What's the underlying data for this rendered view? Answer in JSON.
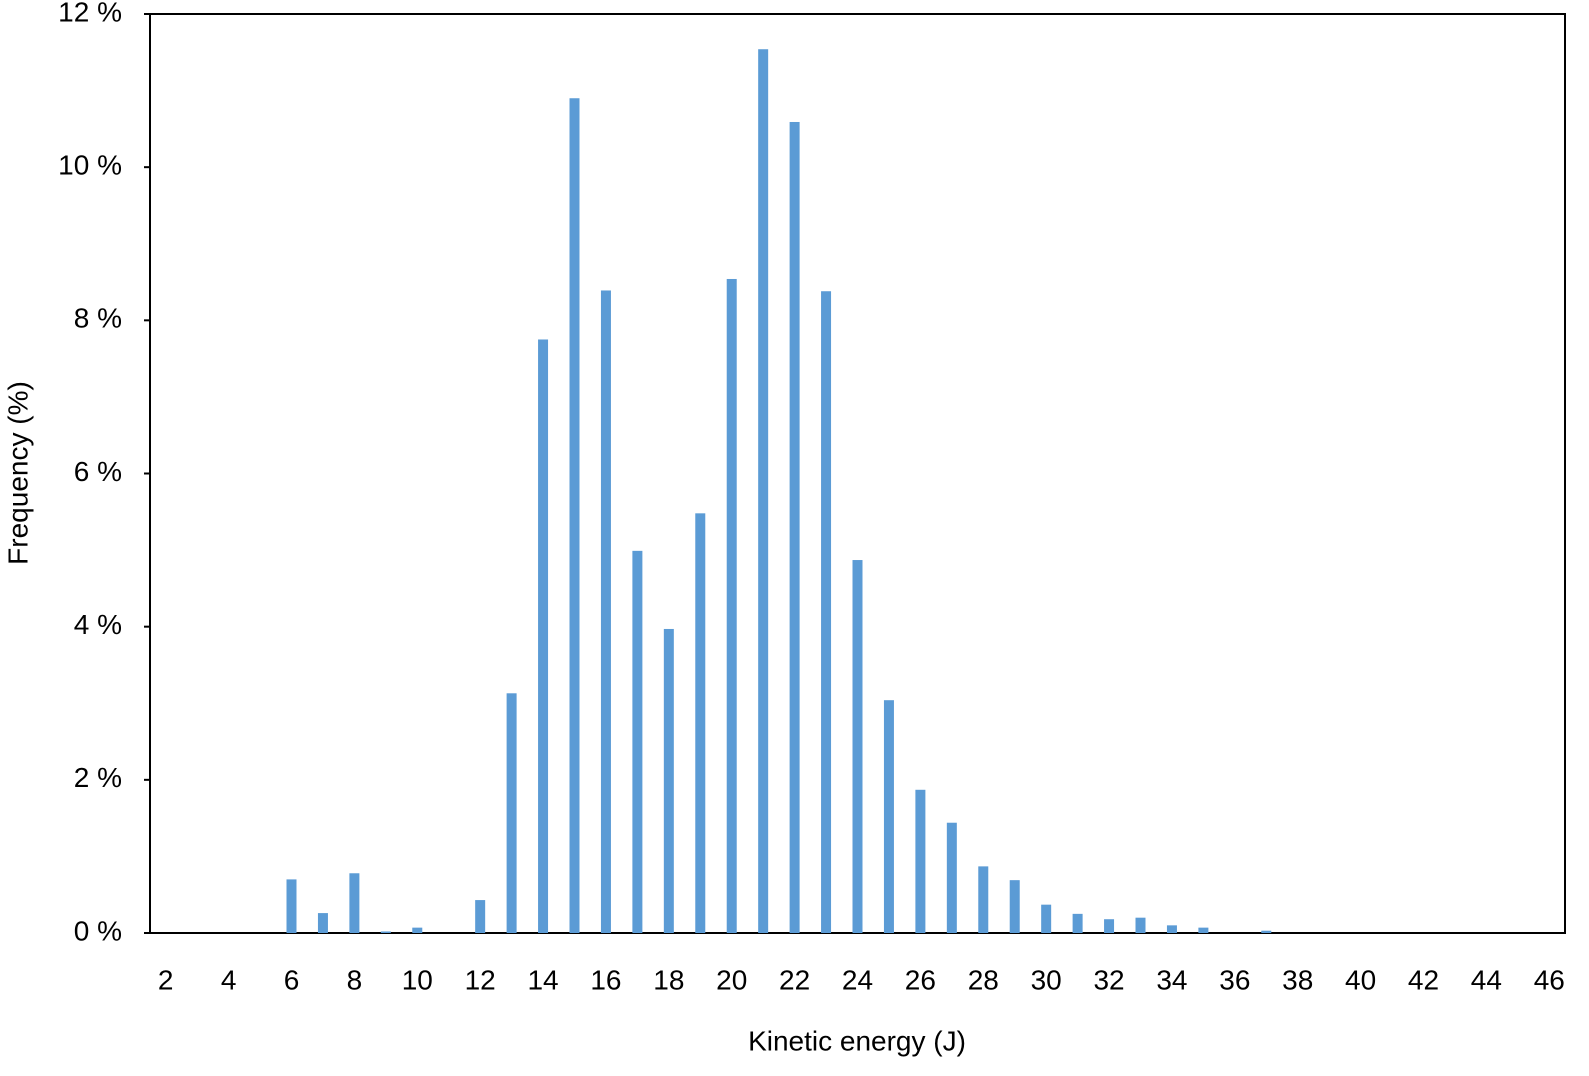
{
  "chart_data": {
    "type": "bar",
    "x_label": "Kinetic energy (J)",
    "y_label": "Frequency (%)",
    "categories": [
      2,
      null,
      4,
      null,
      6,
      null,
      8,
      null,
      10,
      null,
      12,
      null,
      14,
      null,
      16,
      null,
      18,
      null,
      20,
      null,
      22,
      null,
      24,
      null,
      26,
      null,
      28,
      null,
      30,
      null,
      32,
      null,
      34,
      null,
      36,
      null,
      38,
      null,
      40,
      null,
      42,
      null,
      44,
      null,
      46
    ],
    "values": [
      0,
      0,
      0,
      0,
      0.7,
      0.26,
      0.78,
      0.02,
      0.07,
      0,
      0.43,
      3.13,
      7.75,
      10.9,
      8.39,
      4.99,
      3.97,
      5.48,
      8.54,
      11.54,
      10.59,
      8.38,
      4.87,
      3.04,
      1.87,
      1.44,
      0.87,
      0.69,
      0.37,
      0.25,
      0.18,
      0.2,
      0.1,
      0.07,
      0,
      0.03,
      0,
      0,
      0,
      0,
      0,
      0,
      0,
      0,
      0
    ],
    "color": "#5b9bd5",
    "ylim": [
      0,
      12
    ],
    "yticks": [
      {
        "value": 0,
        "label": "0 %"
      },
      {
        "value": 2,
        "label": "2 %"
      },
      {
        "value": 4,
        "label": "4 %"
      },
      {
        "value": 6,
        "label": "6 %"
      },
      {
        "value": 8,
        "label": "8 %"
      },
      {
        "value": 10,
        "label": "10 %"
      },
      {
        "value": 12,
        "label": "12 %"
      }
    ],
    "grid": false
  }
}
